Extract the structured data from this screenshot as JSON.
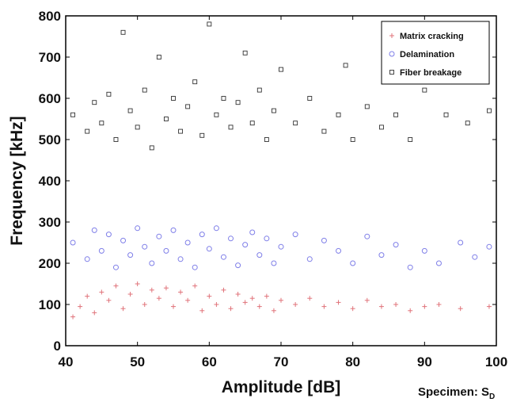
{
  "chart_data": {
    "type": "scatter",
    "xlabel": "Amplitude [dB]",
    "ylabel": "Frequency [kHz]",
    "xlim": [
      40,
      100
    ],
    "ylim": [
      0,
      800
    ],
    "xticks": [
      "40",
      "50",
      "60",
      "70",
      "80",
      "90",
      "100"
    ],
    "yticks": [
      "0",
      "100",
      "200",
      "300",
      "400",
      "500",
      "600",
      "700",
      "800"
    ],
    "legend_position": "top-right",
    "grid": false,
    "series": [
      {
        "name": "Matrix cracking",
        "marker": "plus",
        "color": "#e0737a",
        "points": [
          [
            41,
            70
          ],
          [
            42,
            95
          ],
          [
            43,
            120
          ],
          [
            44,
            80
          ],
          [
            45,
            130
          ],
          [
            46,
            110
          ],
          [
            47,
            145
          ],
          [
            48,
            90
          ],
          [
            49,
            125
          ],
          [
            50,
            150
          ],
          [
            51,
            100
          ],
          [
            52,
            135
          ],
          [
            53,
            115
          ],
          [
            54,
            140
          ],
          [
            55,
            95
          ],
          [
            56,
            130
          ],
          [
            57,
            110
          ],
          [
            58,
            145
          ],
          [
            59,
            85
          ],
          [
            60,
            120
          ],
          [
            61,
            100
          ],
          [
            62,
            135
          ],
          [
            63,
            90
          ],
          [
            64,
            125
          ],
          [
            65,
            105
          ],
          [
            66,
            115
          ],
          [
            67,
            95
          ],
          [
            68,
            120
          ],
          [
            69,
            85
          ],
          [
            70,
            110
          ],
          [
            72,
            100
          ],
          [
            74,
            115
          ],
          [
            76,
            95
          ],
          [
            78,
            105
          ],
          [
            80,
            90
          ],
          [
            82,
            110
          ],
          [
            84,
            95
          ],
          [
            86,
            100
          ],
          [
            88,
            85
          ],
          [
            90,
            95
          ],
          [
            92,
            100
          ],
          [
            95,
            90
          ],
          [
            99,
            95
          ]
        ]
      },
      {
        "name": "Delamination",
        "marker": "circle",
        "color": "#7f7fe8",
        "points": [
          [
            41,
            250
          ],
          [
            43,
            210
          ],
          [
            44,
            280
          ],
          [
            45,
            230
          ],
          [
            46,
            270
          ],
          [
            47,
            190
          ],
          [
            48,
            255
          ],
          [
            49,
            220
          ],
          [
            50,
            285
          ],
          [
            51,
            240
          ],
          [
            52,
            200
          ],
          [
            53,
            265
          ],
          [
            54,
            230
          ],
          [
            55,
            280
          ],
          [
            56,
            210
          ],
          [
            57,
            250
          ],
          [
            58,
            190
          ],
          [
            59,
            270
          ],
          [
            60,
            235
          ],
          [
            61,
            285
          ],
          [
            62,
            215
          ],
          [
            63,
            260
          ],
          [
            64,
            195
          ],
          [
            65,
            245
          ],
          [
            66,
            275
          ],
          [
            67,
            220
          ],
          [
            68,
            260
          ],
          [
            69,
            200
          ],
          [
            70,
            240
          ],
          [
            72,
            270
          ],
          [
            74,
            210
          ],
          [
            76,
            255
          ],
          [
            78,
            230
          ],
          [
            80,
            200
          ],
          [
            82,
            265
          ],
          [
            84,
            220
          ],
          [
            86,
            245
          ],
          [
            88,
            190
          ],
          [
            90,
            230
          ],
          [
            92,
            200
          ],
          [
            95,
            250
          ],
          [
            97,
            215
          ],
          [
            99,
            240
          ]
        ]
      },
      {
        "name": "Fiber breakage",
        "marker": "square",
        "color": "#333333",
        "points": [
          [
            41,
            560
          ],
          [
            43,
            520
          ],
          [
            44,
            590
          ],
          [
            45,
            540
          ],
          [
            46,
            610
          ],
          [
            47,
            500
          ],
          [
            48,
            760
          ],
          [
            49,
            570
          ],
          [
            50,
            530
          ],
          [
            51,
            620
          ],
          [
            52,
            480
          ],
          [
            53,
            700
          ],
          [
            54,
            550
          ],
          [
            55,
            600
          ],
          [
            56,
            520
          ],
          [
            57,
            580
          ],
          [
            58,
            640
          ],
          [
            59,
            510
          ],
          [
            60,
            780
          ],
          [
            61,
            560
          ],
          [
            62,
            600
          ],
          [
            63,
            530
          ],
          [
            64,
            590
          ],
          [
            65,
            710
          ],
          [
            66,
            540
          ],
          [
            67,
            620
          ],
          [
            68,
            500
          ],
          [
            69,
            570
          ],
          [
            70,
            670
          ],
          [
            72,
            540
          ],
          [
            74,
            600
          ],
          [
            76,
            520
          ],
          [
            78,
            560
          ],
          [
            79,
            680
          ],
          [
            80,
            500
          ],
          [
            82,
            580
          ],
          [
            84,
            530
          ],
          [
            86,
            560
          ],
          [
            88,
            500
          ],
          [
            90,
            620
          ],
          [
            93,
            560
          ],
          [
            96,
            540
          ],
          [
            99,
            570
          ]
        ]
      }
    ]
  },
  "footer": {
    "specimen_label": "Specimen: S",
    "specimen_subscript": "D"
  }
}
